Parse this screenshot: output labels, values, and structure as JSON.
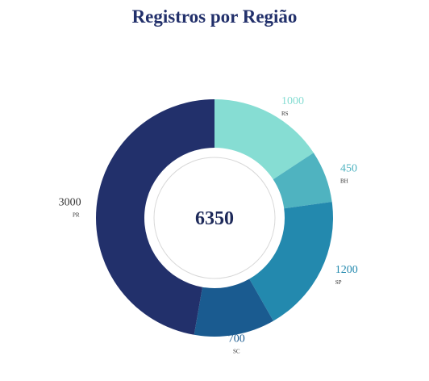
{
  "chart_data": {
    "type": "pie",
    "variant": "donut",
    "title": "Registros por Região",
    "center_label": "6350",
    "categories": [
      "RS",
      "BH",
      "SP",
      "SC",
      "PR"
    ],
    "values": [
      1000,
      450,
      1200,
      700,
      3000
    ],
    "value_labels": [
      "1000",
      "450",
      "1200",
      "700",
      "3000"
    ],
    "colors": [
      "#86ddd3",
      "#4fb3c0",
      "#2389ae",
      "#1a5b90",
      "#22306b"
    ],
    "label_colors": [
      "#86ddd3",
      "#4fb3c0",
      "#2389ae",
      "#1a5b90",
      "#22306b"
    ]
  }
}
